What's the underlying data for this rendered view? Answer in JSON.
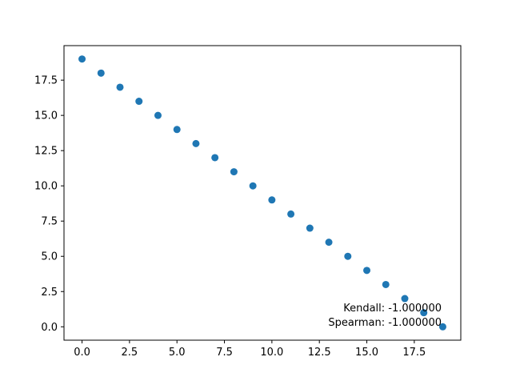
{
  "chart_data": {
    "type": "scatter",
    "x": [
      0,
      1,
      2,
      3,
      4,
      5,
      6,
      7,
      8,
      9,
      10,
      11,
      12,
      13,
      14,
      15,
      16,
      17,
      18,
      19
    ],
    "y": [
      19,
      18,
      17,
      16,
      15,
      14,
      13,
      12,
      11,
      10,
      9,
      8,
      7,
      6,
      5,
      4,
      3,
      2,
      1,
      0
    ],
    "marker_color": "#1f77b4",
    "xlim": [
      -0.95,
      19.95
    ],
    "ylim": [
      -0.95,
      19.95
    ],
    "xticks": [
      "0.0",
      "2.5",
      "5.0",
      "7.5",
      "10.0",
      "12.5",
      "15.0",
      "17.5"
    ],
    "yticks": [
      "0.0",
      "2.5",
      "5.0",
      "7.5",
      "10.0",
      "12.5",
      "15.0",
      "17.5"
    ],
    "grid": false,
    "annotations": [
      {
        "text": "Kendall: -1.000000"
      },
      {
        "text": "Spearman: -1.000000"
      }
    ]
  }
}
